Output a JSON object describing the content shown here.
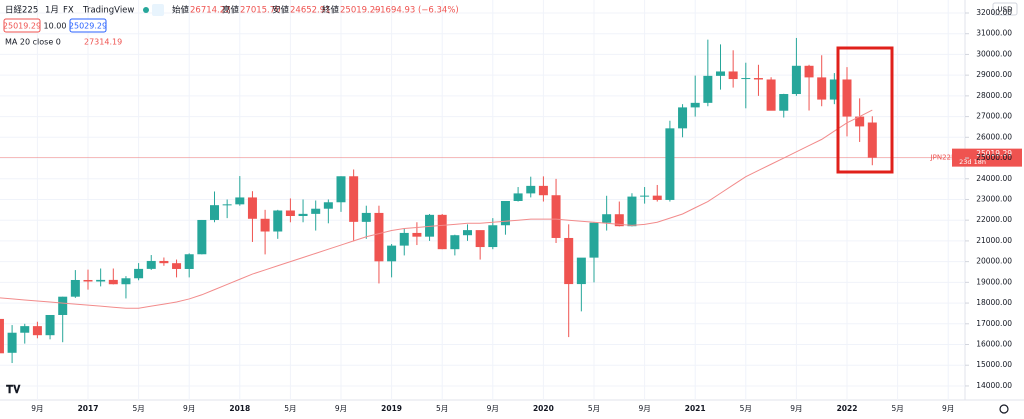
{
  "chart_data": {
    "type": "candlestick",
    "title": "日経225",
    "interval": "1月",
    "source": "FX",
    "brand": "TradingView",
    "ohlc_header": {
      "open_label": "始値",
      "open": "26714.22",
      "high_label": "高値",
      "high": "27015.70",
      "low_label": "安値",
      "low": "24652.91",
      "close_label": "終値",
      "close": "25019.29",
      "change": "−1694.93 (−6.34%)"
    },
    "quote": {
      "bid": "25019.29",
      "spread": "10.00",
      "ask": "25029.29"
    },
    "currency": "USD",
    "price_tag": {
      "symbol": "JPN225",
      "price": "25019.29",
      "countdown": "23d 18h"
    },
    "up_color": "#26a69a",
    "down_color": "#ef5350",
    "categories": [
      null,
      null,
      null,
      "9月",
      null,
      null,
      null,
      "2017",
      null,
      null,
      null,
      "5月",
      null,
      null,
      null,
      "9月",
      null,
      null,
      null,
      "2018",
      null,
      null,
      null,
      "5月",
      null,
      null,
      null,
      "9月",
      null,
      null,
      null,
      "2019",
      null,
      null,
      null,
      "5月",
      null,
      null,
      null,
      "9月",
      null,
      null,
      null,
      "2020",
      null,
      null,
      null,
      "5月",
      null,
      null,
      null,
      "9月",
      null,
      null,
      null,
      "2021",
      null,
      null,
      null,
      "5月",
      null,
      null,
      null,
      "9月",
      null,
      null,
      null,
      "2022",
      null,
      null,
      null,
      "5月",
      null,
      null,
      null,
      "9月",
      null
    ],
    "open": [
      17235,
      15600,
      16569,
      16887,
      16450,
      17425,
      18308,
      19114,
      19041,
      19119,
      18909,
      19197,
      19650,
      20033,
      19925,
      19646,
      20356,
      22011,
      22725,
      22765,
      23098,
      22068,
      21454,
      22468,
      22202,
      22305,
      22554,
      22865,
      24120,
      21920,
      22351,
      20015,
      20773,
      21385,
      21205,
      22258,
      20601,
      21275,
      21521,
      20704,
      21756,
      22927,
      23293,
      23656,
      23205,
      21142,
      18917,
      20193,
      21877,
      22288,
      21710,
      23139,
      23185,
      22977,
      26433,
      27444,
      27663,
      28966,
      29178,
      28812,
      28860,
      28791,
      27283,
      28089,
      29452,
      28892,
      27821,
      28791,
      27001,
      26714.22,
      null,
      null,
      null,
      null,
      null,
      null,
      null
    ],
    "high": [
      17250,
      16938,
      17000,
      17100,
      17425,
      18308,
      19592,
      19615,
      19668,
      19668,
      19300,
      19928,
      20318,
      20200,
      20100,
      20400,
      22011,
      23382,
      23000,
      24129,
      23400,
      22500,
      22500,
      23050,
      23000,
      22950,
      23000,
      24120,
      24448,
      22700,
      22700,
      20850,
      21600,
      21900,
      22300,
      22300,
      21300,
      21800,
      21500,
      22100,
      22900,
      23600,
      24100,
      24115,
      23995,
      21800,
      20000,
      21900,
      23178,
      22900,
      23300,
      23600,
      23700,
      26800,
      27600,
      28979,
      30714,
      30485,
      30200,
      29600,
      29500,
      28900,
      28100,
      30795,
      29500,
      29960,
      29100,
      29388,
      27880,
      27015.7,
      null,
      null,
      null,
      null,
      null,
      null,
      null
    ],
    "low": [
      14864,
      15106,
      16044,
      16300,
      16250,
      16111,
      18250,
      18650,
      18805,
      18900,
      18224,
      19100,
      19600,
      19800,
      19240,
      19240,
      20350,
      21900,
      22100,
      22700,
      20950,
      20350,
      21100,
      21900,
      21900,
      21500,
      21850,
      22400,
      20971,
      21100,
      18948,
      19241,
      20300,
      20800,
      21000,
      20600,
      20300,
      21000,
      20100,
      20600,
      21300,
      22900,
      23100,
      22900,
      20900,
      16358,
      17600,
      19000,
      21500,
      21700,
      21700,
      22800,
      22900,
      22900,
      26000,
      27000,
      27500,
      28300,
      28400,
      27400,
      28000,
      27300,
      26954,
      28000,
      27293,
      27500,
      27600,
      26044,
      25776,
      24652.91,
      null,
      null,
      null,
      null,
      null,
      null,
      null
    ],
    "close": [
      15576,
      16569,
      16887,
      16450,
      17425,
      18308,
      19114,
      19041,
      19119,
      18909,
      19197,
      19650,
      20033,
      19925,
      19646,
      20356,
      22011,
      22725,
      22765,
      23098,
      22068,
      21454,
      22468,
      22202,
      22305,
      22554,
      22865,
      24120,
      21920,
      22351,
      20015,
      20773,
      21385,
      21205,
      22258,
      20601,
      21275,
      21521,
      20704,
      21756,
      22927,
      23293,
      23656,
      23205,
      21142,
      18917,
      20193,
      21877,
      22288,
      21710,
      23139,
      23185,
      22977,
      26433,
      27444,
      27663,
      28966,
      29178,
      28812,
      28860,
      28791,
      27283,
      28089,
      29452,
      28892,
      27821,
      28791,
      27001,
      26526,
      25019.29,
      null,
      null,
      null,
      null,
      null,
      null,
      null
    ],
    "ma": {
      "name": "MA 20 close 0",
      "value_label": "27314.19",
      "color": "#f28b8b",
      "values": [
        18250,
        18200,
        18150,
        18100,
        18050,
        18000,
        17950,
        17900,
        17850,
        17800,
        17750,
        17750,
        17850,
        17950,
        18050,
        18200,
        18400,
        18650,
        18900,
        19150,
        19400,
        19600,
        19800,
        20000,
        20200,
        20400,
        20600,
        20800,
        21000,
        21200,
        21350,
        21500,
        21600,
        21650,
        21700,
        21750,
        21800,
        21850,
        21850,
        21900,
        21950,
        22000,
        22050,
        22050,
        22050,
        22000,
        21950,
        21900,
        21850,
        21800,
        21750,
        21800,
        21900,
        22100,
        22300,
        22600,
        22900,
        23300,
        23700,
        24100,
        24400,
        24700,
        25000,
        25300,
        25600,
        25900,
        26300,
        26700,
        27000,
        27314.19,
        null,
        null,
        null,
        null,
        null,
        null,
        null
      ]
    },
    "ylim": [
      13322,
      32627
    ],
    "yticks": [
      {
        "value": 14000,
        "label": "14000.00"
      },
      {
        "value": 15000,
        "label": "15000.00"
      },
      {
        "value": 16000,
        "label": "16000.00"
      },
      {
        "value": 17000,
        "label": "17000.00"
      },
      {
        "value": 18000,
        "label": "18000.00"
      },
      {
        "value": 19000,
        "label": "19000.00"
      },
      {
        "value": 20000,
        "label": "20000.00"
      },
      {
        "value": 21000,
        "label": "21000.00"
      },
      {
        "value": 22000,
        "label": "22000.00"
      },
      {
        "value": 23000,
        "label": "23000.00"
      },
      {
        "value": 24000,
        "label": "24000.00"
      },
      {
        "value": 25000,
        "label": "25000.00"
      },
      {
        "value": 26000,
        "label": "26000.00"
      },
      {
        "value": 27000,
        "label": "27000.00"
      },
      {
        "value": 28000,
        "label": "28000.00"
      },
      {
        "value": 29000,
        "label": "29000.00"
      },
      {
        "value": 30000,
        "label": "30000.00"
      },
      {
        "value": 31000,
        "label": "31000.00"
      },
      {
        "value": 32000,
        "label": "32000.00"
      }
    ],
    "grid": true
  }
}
